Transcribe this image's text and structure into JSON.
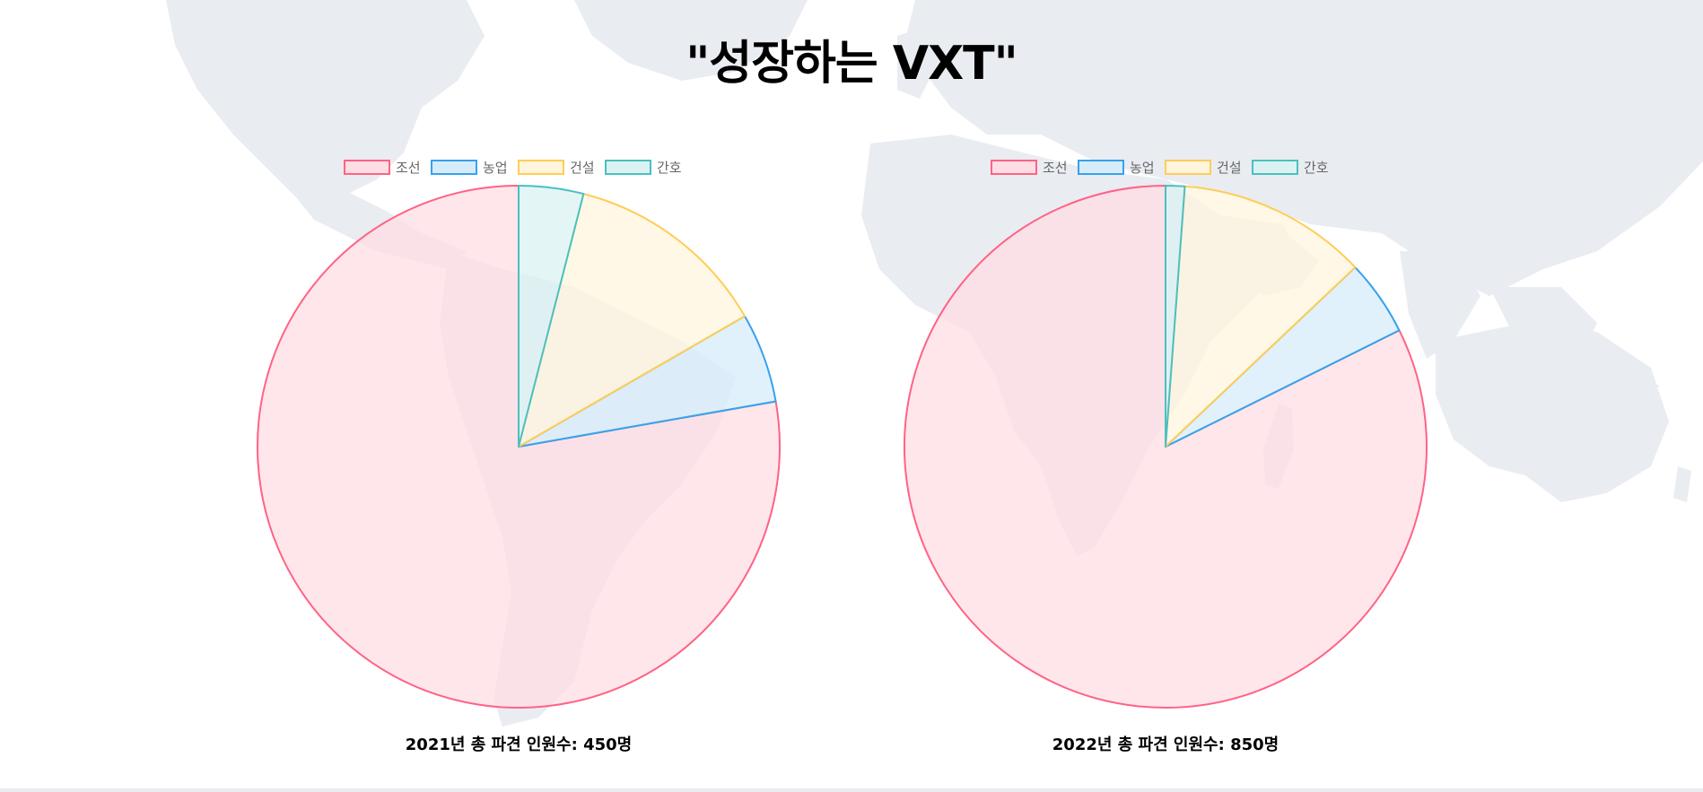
{
  "page": {
    "title": "\"성장하는 VXT\""
  },
  "colors": {
    "map": "#e9ecf1",
    "label_text": "#666666",
    "caption_text": "#000000"
  },
  "legend": [
    {
      "label": "조선",
      "border": "#ff6384",
      "fill": "#ffdde4"
    },
    {
      "label": "농업",
      "border": "#36a2eb",
      "fill": "#d7ecfb"
    },
    {
      "label": "건설",
      "border": "#ffcd56",
      "fill": "#fff5dd"
    },
    {
      "label": "간호",
      "border": "#4bc0c0",
      "fill": "#dbf2f2"
    }
  ],
  "chart_data": [
    {
      "type": "pie",
      "caption": "2021년 총 파견 인원수: 450명",
      "categories": [
        "조선",
        "농업",
        "건설",
        "간호"
      ],
      "values": [
        350,
        25,
        57,
        18
      ],
      "legend_position": "top"
    },
    {
      "type": "pie",
      "caption": "2022년 총 파견 인원수: 850명",
      "categories": [
        "조선",
        "농업",
        "건설",
        "간호"
      ],
      "values": [
        700,
        40,
        100,
        10
      ],
      "legend_position": "top"
    }
  ]
}
